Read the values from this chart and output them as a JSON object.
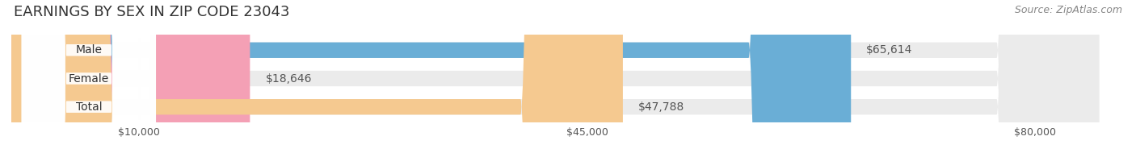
{
  "title": "EARNINGS BY SEX IN ZIP CODE 23043",
  "source_text": "Source: ZipAtlas.com",
  "categories": [
    "Male",
    "Female",
    "Total"
  ],
  "values": [
    65614,
    18646,
    47788
  ],
  "bar_colors": [
    "#6aaed6",
    "#f4a0b5",
    "#f5c990"
  ],
  "bar_bg_color": "#e8e8e8",
  "label_bg_colors": [
    "#6aaed6",
    "#f4a0b5",
    "#f5c990"
  ],
  "value_labels": [
    "$65,614",
    "$18,646",
    "$47,788"
  ],
  "x_ticks": [
    10000,
    45000,
    80000
  ],
  "x_tick_labels": [
    "$10,000",
    "$45,000",
    "$80,000"
  ],
  "xlim": [
    0,
    87000
  ],
  "title_fontsize": 13,
  "source_fontsize": 9,
  "tick_fontsize": 9,
  "bar_label_fontsize": 10,
  "value_fontsize": 10,
  "background_color": "#ffffff",
  "bar_bg_full": 85000
}
